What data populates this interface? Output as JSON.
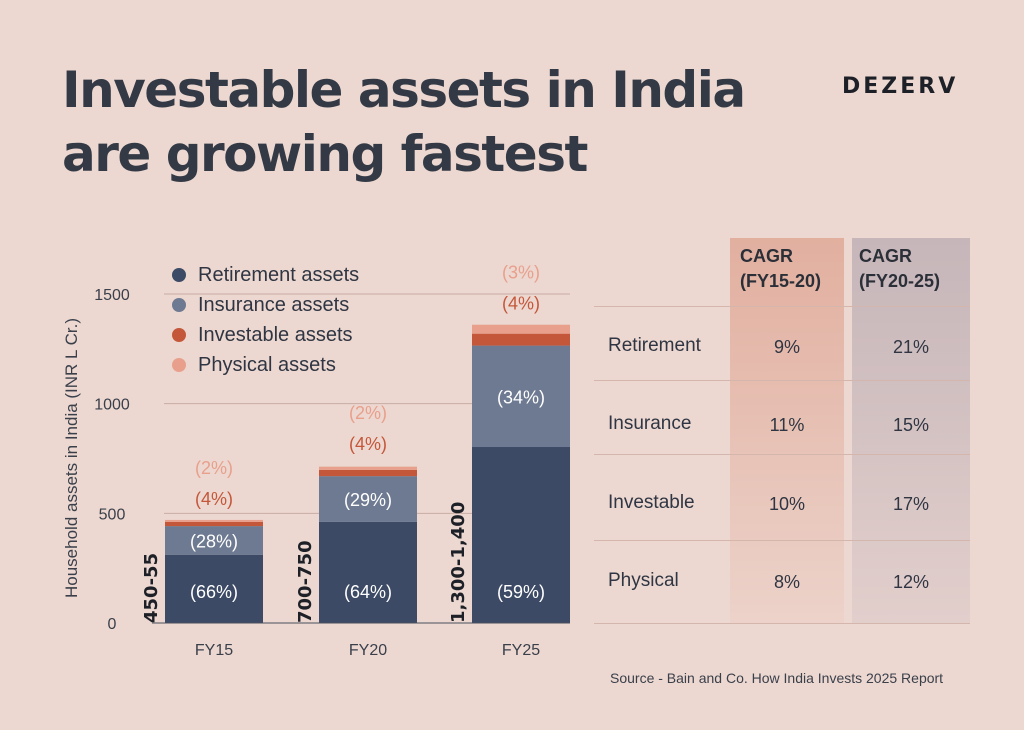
{
  "header": {
    "title_line1": "Investable assets in India",
    "title_line2": "are growing fastest",
    "brand": "DEZERV"
  },
  "colors": {
    "background": "#ecd8d1",
    "retirement": "#3c4a65",
    "insurance": "#6e7a91",
    "investable": "#c4573a",
    "physical": "#e8a08c"
  },
  "chart_data": {
    "type": "bar",
    "stacked": true,
    "categories": [
      "FY15",
      "FY20",
      "FY25"
    ],
    "totals": [
      470,
      720,
      1360
    ],
    "total_labels": [
      "450-55",
      "700-750",
      "1,300-1,400"
    ],
    "series": [
      {
        "name": "Retirement assets",
        "color": "#3c4a65",
        "share": [
          66,
          64,
          59
        ],
        "labels": [
          "(66%)",
          "(64%)",
          "(59%)"
        ]
      },
      {
        "name": "Insurance assets",
        "color": "#6e7a91",
        "share": [
          28,
          29,
          34
        ],
        "labels": [
          "(28%)",
          "(29%)",
          "(34%)"
        ]
      },
      {
        "name": "Investable assets",
        "color": "#c4573a",
        "share": [
          4,
          4,
          4
        ],
        "labels": [
          "(4%)",
          "(4%)",
          "(4%)"
        ]
      },
      {
        "name": "Physical assets",
        "color": "#e8a08c",
        "share": [
          2,
          2,
          3
        ],
        "labels": [
          "(2%)",
          "(2%)",
          "(3%)"
        ]
      }
    ],
    "ylabel": "Household assets in India (INR L Cr.)",
    "yticks": [
      "0",
      "500",
      "1000",
      "1500"
    ],
    "ytick_values": [
      0,
      500,
      1000,
      1500
    ],
    "ylim": [
      0,
      1500
    ],
    "grid": true,
    "legend_position": "top-left"
  },
  "cagr_table": {
    "headers": [
      {
        "line1": "CAGR",
        "line2": "(FY15-20)"
      },
      {
        "line1": "CAGR",
        "line2": "(FY20-25)"
      }
    ],
    "rows": [
      {
        "label": "Retirement",
        "fy15_20": "9%",
        "fy20_25": "21%"
      },
      {
        "label": "Insurance",
        "fy15_20": "11%",
        "fy20_25": "15%"
      },
      {
        "label": "Investable",
        "fy15_20": "10%",
        "fy20_25": "17%"
      },
      {
        "label": "Physical",
        "fy15_20": "8%",
        "fy20_25": "12%"
      }
    ]
  },
  "footer": {
    "source": "Source - Bain and Co. How India Invests 2025 Report"
  }
}
